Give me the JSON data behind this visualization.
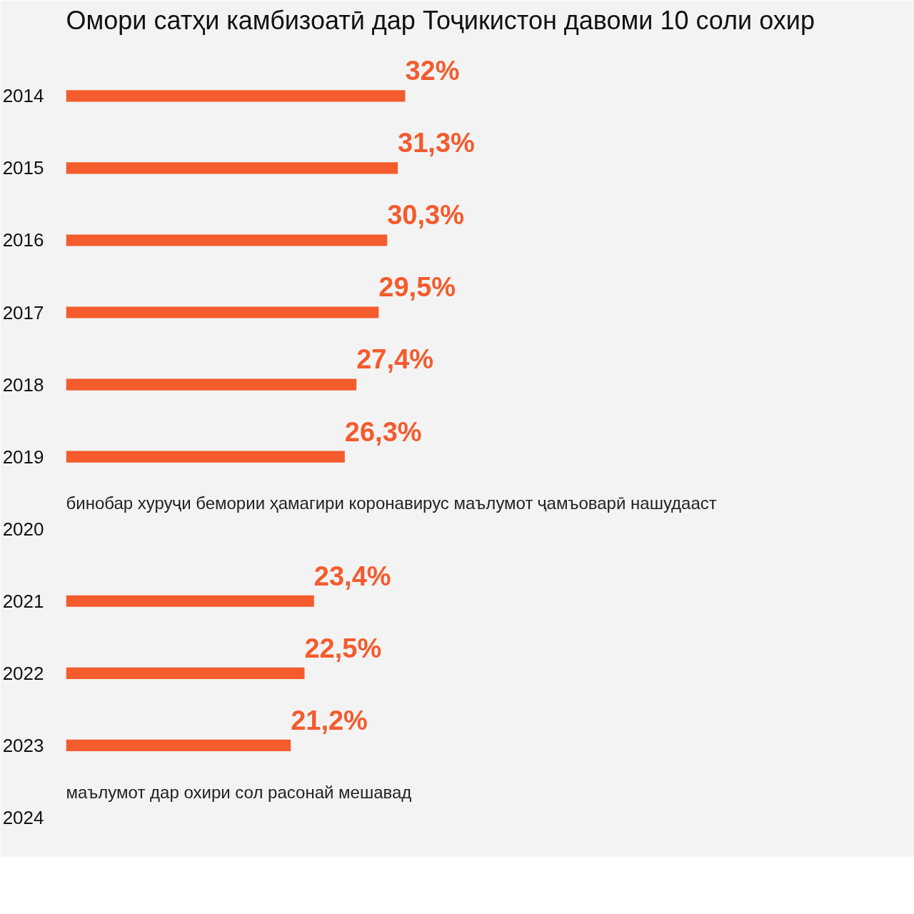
{
  "chart_data": {
    "type": "bar",
    "orientation": "horizontal",
    "title": "Омори сатҳи камбизоатӣ дар Тоҷикистон давоми 10 соли охир",
    "categories": [
      "2014",
      "2015",
      "2016",
      "2017",
      "2018",
      "2019",
      "2020",
      "2021",
      "2022",
      "2023",
      "2024"
    ],
    "values": [
      32,
      31.3,
      30.3,
      29.5,
      27.4,
      26.3,
      null,
      23.4,
      22.5,
      21.2,
      null
    ],
    "value_labels": [
      "32%",
      "31,3%",
      "30,3%",
      "29,5%",
      "27,4%",
      "26,3%",
      null,
      "23,4%",
      "22,5%",
      "21,2%",
      null
    ],
    "color": "#f45b2d",
    "xlim": [
      0,
      76
    ],
    "tick_labels": "y",
    "grid": false,
    "annotations": [
      "бинобар хуруҷи бемории ҳамагири коронавирус маълумот ҷамъоварӣ нашудааст",
      "маълумот дар охири сол расонай мешавад"
    ]
  }
}
